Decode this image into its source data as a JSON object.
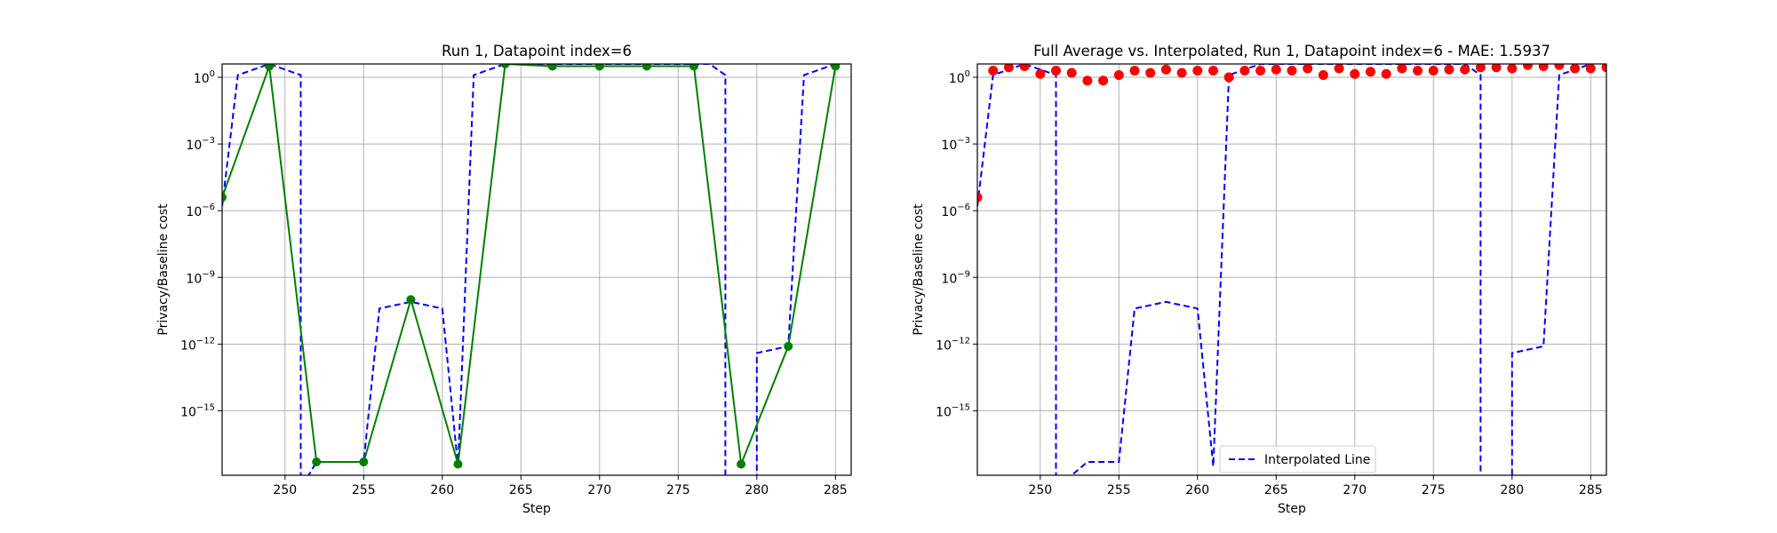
{
  "chart_data": [
    {
      "type": "line",
      "title": "Run 1, Datapoint index=6",
      "xlabel": "Step",
      "ylabel": "Privacy/Baseline cost",
      "xlim": [
        246,
        286
      ],
      "yscale": "log",
      "ylim_exp": [
        -17.9,
        0.6
      ],
      "xticks": [
        250,
        255,
        260,
        265,
        270,
        275,
        280,
        285
      ],
      "yticks": [
        {
          "exp": 0,
          "label": "10^0"
        },
        {
          "exp": -3,
          "label": "10^-3"
        },
        {
          "exp": -6,
          "label": "10^-6"
        },
        {
          "exp": -9,
          "label": "10^-9"
        },
        {
          "exp": -12,
          "label": "10^-12"
        },
        {
          "exp": -15,
          "label": "10^-15"
        }
      ],
      "grid": true,
      "series": [
        {
          "style": "dashed",
          "color": "#0000ff",
          "x": [
            246,
            247,
            249,
            251,
            251,
            252,
            255,
            256,
            258,
            260,
            261,
            262,
            264,
            265,
            276,
            277,
            278,
            278,
            280,
            280,
            282,
            283,
            285
          ],
          "y_exp": [
            -5.8,
            0.1,
            0.6,
            0.1,
            -18.5,
            -17.3,
            -17.3,
            -10.4,
            -10.1,
            -10.4,
            -17.5,
            0.1,
            0.6,
            0.6,
            0.6,
            0.6,
            0.1,
            -18.5,
            -18.5,
            -12.4,
            -12.1,
            0.1,
            0.6
          ]
        },
        {
          "style": "solid",
          "color": "#008000",
          "marker": true,
          "x": [
            246,
            249,
            252,
            255,
            258,
            261,
            264,
            267,
            270,
            273,
            276,
            279,
            282,
            285
          ],
          "y_exp": [
            -5.4,
            0.5,
            -17.3,
            -17.3,
            -10.0,
            -17.4,
            0.6,
            0.5,
            0.5,
            0.5,
            0.5,
            -17.4,
            -12.1,
            0.5
          ]
        }
      ]
    },
    {
      "type": "line",
      "title": "Full Average vs. Interpolated, Run 1, Datapoint index=6 - MAE: 1.5937",
      "xlabel": "Step",
      "ylabel": "Privacy/Baseline cost",
      "xlim": [
        246,
        286
      ],
      "yscale": "log",
      "ylim_exp": [
        -17.9,
        0.6
      ],
      "xticks": [
        250,
        255,
        260,
        265,
        270,
        275,
        280,
        285
      ],
      "yticks": [
        {
          "exp": 0,
          "label": "10^0"
        },
        {
          "exp": -3,
          "label": "10^-3"
        },
        {
          "exp": -6,
          "label": "10^-6"
        },
        {
          "exp": -9,
          "label": "10^-9"
        },
        {
          "exp": -12,
          "label": "10^-12"
        },
        {
          "exp": -15,
          "label": "10^-15"
        }
      ],
      "grid": true,
      "legend": {
        "position": "lower-center",
        "entries": [
          "Interpolated Line"
        ]
      },
      "series": [
        {
          "name": "Interpolated Line",
          "style": "dashed",
          "color": "#0000ff",
          "x": [
            246,
            247,
            249,
            251,
            251,
            253,
            255,
            256,
            258,
            260,
            261,
            262,
            264,
            265,
            276,
            277,
            278,
            278,
            280,
            280,
            282,
            283,
            285
          ],
          "y_exp": [
            -5.8,
            0.1,
            0.6,
            0.1,
            -18.5,
            -17.3,
            -17.3,
            -10.4,
            -10.1,
            -10.4,
            -17.5,
            0.1,
            0.6,
            0.6,
            0.6,
            0.6,
            0.1,
            -18.5,
            -18.5,
            -12.4,
            -12.1,
            0.1,
            0.6
          ]
        },
        {
          "style": "points",
          "color": "#ff0000",
          "x": [
            246,
            247,
            248,
            249,
            250,
            251,
            252,
            253,
            254,
            255,
            256,
            257,
            258,
            259,
            260,
            261,
            262,
            263,
            264,
            265,
            266,
            267,
            268,
            269,
            270,
            271,
            272,
            273,
            274,
            275,
            276,
            277,
            278,
            279,
            280,
            281,
            282,
            283,
            284,
            285,
            286
          ],
          "y_exp": [
            -5.4,
            0.3,
            0.45,
            0.5,
            0.15,
            0.3,
            0.2,
            -0.15,
            -0.15,
            0.1,
            0.3,
            0.2,
            0.35,
            0.2,
            0.3,
            0.3,
            0.0,
            0.3,
            0.3,
            0.35,
            0.3,
            0.4,
            0.1,
            0.4,
            0.15,
            0.25,
            0.15,
            0.4,
            0.3,
            0.3,
            0.35,
            0.35,
            0.45,
            0.45,
            0.4,
            0.55,
            0.5,
            0.55,
            0.4,
            0.4,
            0.45
          ]
        }
      ]
    }
  ]
}
